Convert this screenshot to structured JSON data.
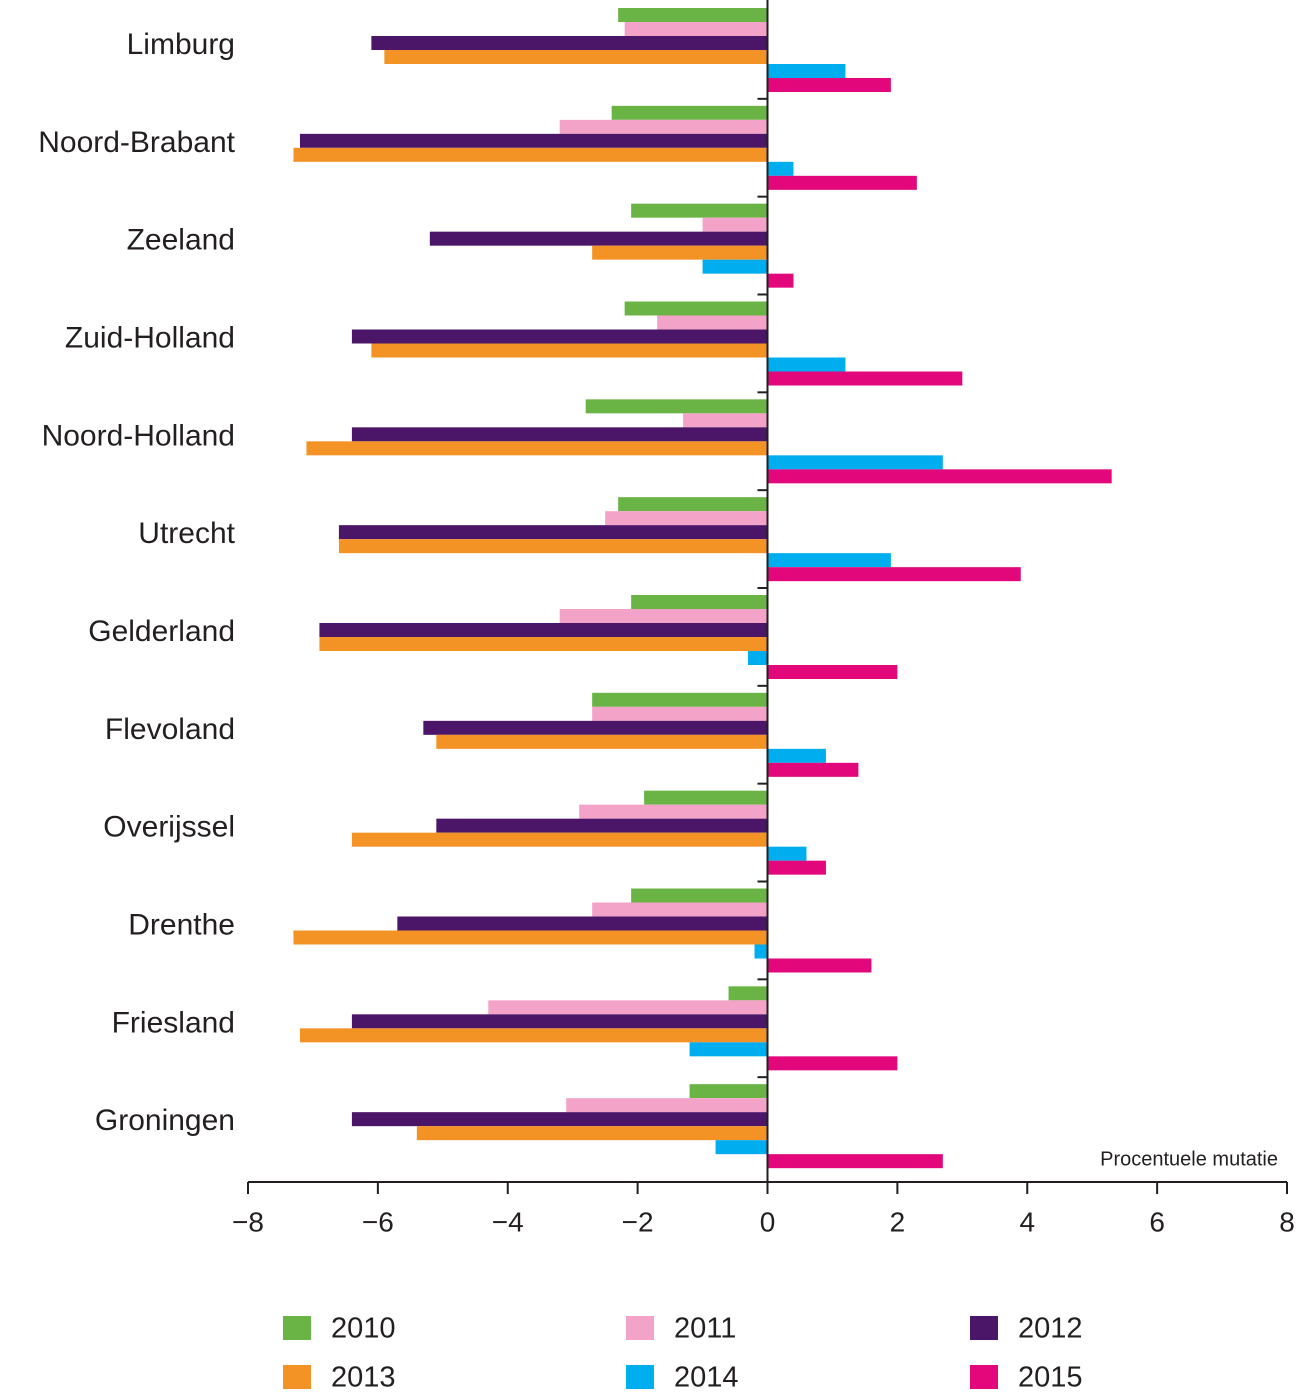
{
  "chart_data": {
    "type": "hbar",
    "x_label": "Procentuele mutatie",
    "categories": [
      "Limburg",
      "Noord-Brabant",
      "Zeeland",
      "Zuid-Holland",
      "Noord-Holland",
      "Utrecht",
      "Gelderland",
      "Flevoland",
      "Overijssel",
      "Drenthe",
      "Friesland",
      "Groningen"
    ],
    "series": [
      {
        "name": "2010",
        "color": "#6ab445",
        "values": [
          -2.3,
          -2.4,
          -2.1,
          -2.2,
          -2.8,
          -2.3,
          -2.1,
          -2.7,
          -1.9,
          -2.1,
          -0.6,
          -1.2
        ]
      },
      {
        "name": "2011",
        "color": "#f4a3c8",
        "values": [
          -2.2,
          -3.2,
          -1.0,
          -1.7,
          -1.3,
          -2.5,
          -3.2,
          -2.7,
          -2.9,
          -2.7,
          -4.3,
          -3.1
        ]
      },
      {
        "name": "2012",
        "color": "#4b1568",
        "values": [
          -6.1,
          -7.2,
          -5.2,
          -6.4,
          -6.4,
          -6.6,
          -6.9,
          -5.3,
          -5.1,
          -5.7,
          -6.4,
          -6.4
        ]
      },
      {
        "name": "2013",
        "color": "#f39325",
        "values": [
          -5.9,
          -7.3,
          -2.7,
          -6.1,
          -7.1,
          -6.6,
          -6.9,
          -5.1,
          -6.4,
          -7.3,
          -7.2,
          -5.4
        ]
      },
      {
        "name": "2014",
        "color": "#00aeef",
        "values": [
          1.2,
          0.4,
          -1.0,
          1.2,
          2.7,
          1.9,
          -0.3,
          0.9,
          0.6,
          -0.2,
          -1.2,
          -0.8
        ]
      },
      {
        "name": "2015",
        "color": "#e2087b",
        "values": [
          1.9,
          2.3,
          0.4,
          3.0,
          5.3,
          3.9,
          2.0,
          1.4,
          0.9,
          1.6,
          2.0,
          2.7
        ]
      }
    ],
    "xlim": [
      -8,
      8
    ],
    "xticks": [
      {
        "value": -8,
        "label": "−8"
      },
      {
        "value": -6,
        "label": "−6"
      },
      {
        "value": -4,
        "label": "−4"
      },
      {
        "value": -2,
        "label": "−2"
      },
      0,
      2,
      4,
      6,
      8
    ]
  }
}
